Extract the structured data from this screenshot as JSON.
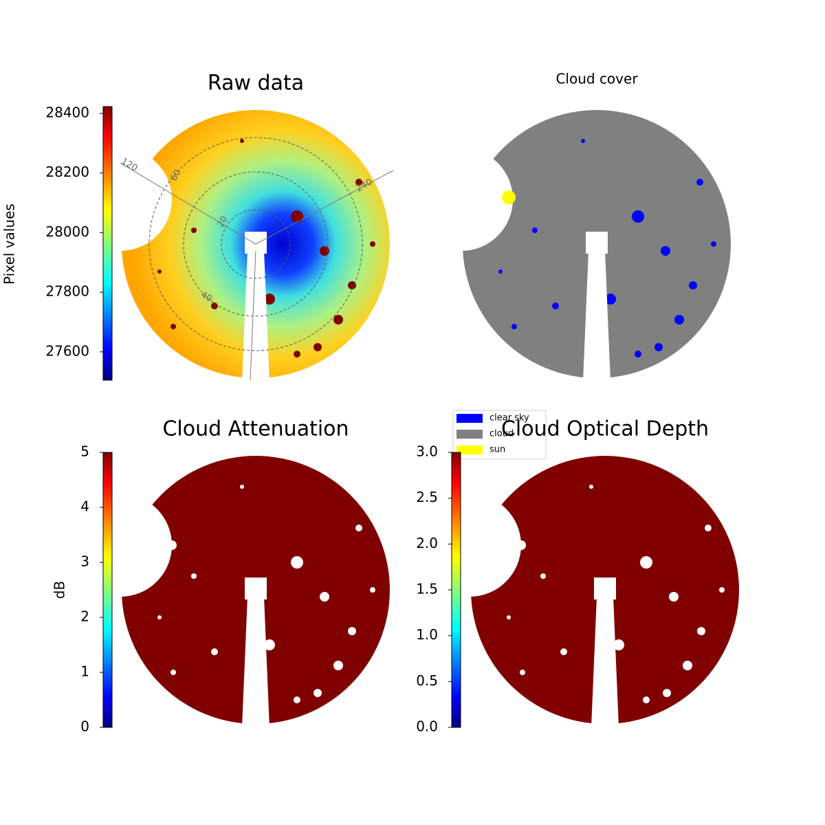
{
  "chart_data": [
    {
      "type": "image",
      "title": "Raw data",
      "colorbar_label": "Pixel values",
      "ylim": [
        27505,
        28423
      ],
      "yticks": [
        27600,
        27800,
        28000,
        28200,
        28400
      ],
      "annotations": [
        "120",
        "60",
        "20",
        "40",
        "240"
      ]
    },
    {
      "type": "image",
      "title": "Cloud cover",
      "series": [
        {
          "name": "clear sky",
          "color": "#0000ff"
        },
        {
          "name": "cloud",
          "color": "#808080"
        },
        {
          "name": "sun",
          "color": "#ffff00"
        }
      ]
    },
    {
      "type": "image",
      "title": "Cloud Attenuation",
      "colorbar_label": "dB",
      "ylim": [
        0,
        5
      ],
      "yticks": [
        0,
        1,
        2,
        3,
        4,
        5
      ]
    },
    {
      "type": "image",
      "title": "Cloud Optical Depth",
      "ylim": [
        0,
        3
      ],
      "yticks": [
        {
          "value": 0,
          "label": "0.0"
        },
        {
          "value": 0.5,
          "label": "0.5"
        },
        {
          "value": 1,
          "label": "1.0"
        },
        {
          "value": 1.5,
          "label": "1.5"
        },
        {
          "value": 2,
          "label": "2.0"
        },
        {
          "value": 2.5,
          "label": "2.5"
        },
        {
          "value": 3,
          "label": "3.0"
        }
      ]
    }
  ]
}
